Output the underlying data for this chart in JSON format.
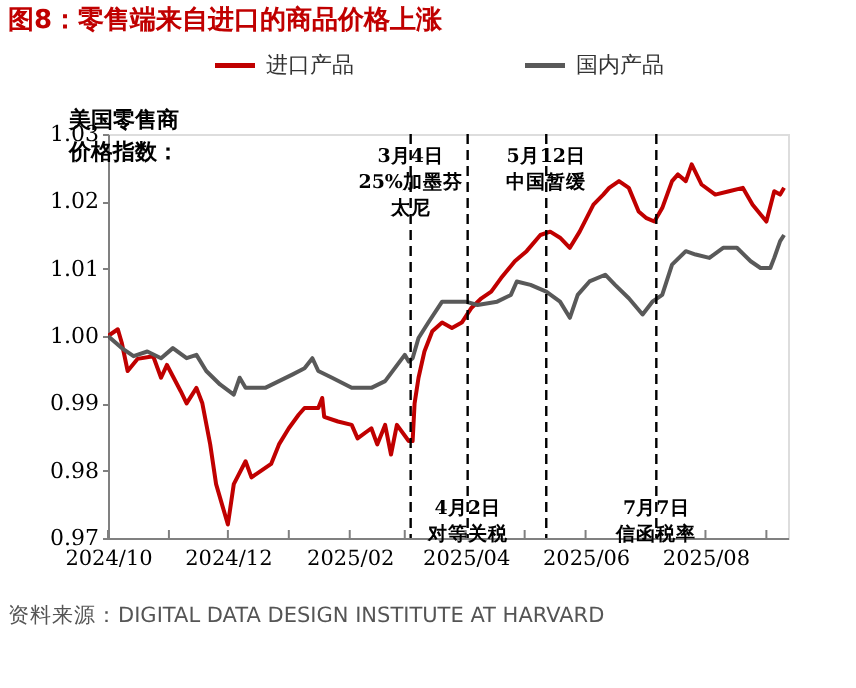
{
  "chart_data": {
    "type": "line",
    "title": "图8：零售端来自进口的商品价格上涨",
    "ylabel": "美国零售商价格指数：",
    "legend": "top",
    "grid": false,
    "marker": "none",
    "line_style": "solid",
    "xlim": [
      "2024-10-01",
      "2025-09-12"
    ],
    "ylim": [
      0.97,
      1.03
    ],
    "xticks": [
      {
        "value": "2024-10-01",
        "label": "2024/10"
      },
      {
        "value": "2024-11-01",
        "label": null
      },
      {
        "value": "2024-12-01",
        "label": "2024/12"
      },
      {
        "value": "2025-01-01",
        "label": null
      },
      {
        "value": "2025-02-01",
        "label": "2025/02"
      },
      {
        "value": "2025-03-01",
        "label": null
      },
      {
        "value": "2025-04-01",
        "label": "2025/04"
      },
      {
        "value": "2025-05-01",
        "label": null
      },
      {
        "value": "2025-06-01",
        "label": "2025/06"
      },
      {
        "value": "2025-07-01",
        "label": null
      },
      {
        "value": "2025-08-01",
        "label": "2025/08"
      },
      {
        "value": "2025-09-01",
        "label": null
      }
    ],
    "yticks": [
      0.97,
      0.98,
      0.99,
      {
        "value": 1.0,
        "label": "1.00"
      },
      1.01,
      1.02,
      1.03
    ],
    "series": [
      {
        "name": "进口产品",
        "color": "#c00000",
        "x": [
          "2024-10-01",
          "2024-10-06",
          "2024-10-08",
          "2024-10-11",
          "2024-10-16",
          "2024-10-24",
          "2024-10-28",
          "2024-10-31",
          "2024-11-07",
          "2024-11-10",
          "2024-11-15",
          "2024-11-18",
          "2024-11-22",
          "2024-11-25",
          "2024-11-28",
          "2024-12-01",
          "2024-12-04",
          "2024-12-10",
          "2024-12-13",
          "2024-12-18",
          "2024-12-23",
          "2024-12-27",
          "2025-01-01",
          "2025-01-06",
          "2025-01-09",
          "2025-01-16",
          "2025-01-18",
          "2025-01-19",
          "2025-01-26",
          "2025-02-02",
          "2025-02-05",
          "2025-02-12",
          "2025-02-15",
          "2025-02-19",
          "2025-02-22",
          "2025-02-25",
          "2025-03-03",
          "2025-03-05",
          "2025-03-06",
          "2025-03-08",
          "2025-03-11",
          "2025-03-15",
          "2025-03-20",
          "2025-03-25",
          "2025-03-30",
          "2025-04-04",
          "2025-04-09",
          "2025-04-14",
          "2025-04-19",
          "2025-04-26",
          "2025-05-02",
          "2025-05-09",
          "2025-05-14",
          "2025-05-19",
          "2025-05-24",
          "2025-05-29",
          "2025-06-05",
          "2025-06-10",
          "2025-06-13",
          "2025-06-18",
          "2025-06-23",
          "2025-06-28",
          "2025-07-02",
          "2025-07-06",
          "2025-07-10",
          "2025-07-15",
          "2025-07-18",
          "2025-07-22",
          "2025-07-25",
          "2025-07-30",
          "2025-08-06",
          "2025-08-13",
          "2025-08-20",
          "2025-08-25",
          "2025-09-01",
          "2025-09-05",
          "2025-09-08",
          "2025-09-10"
        ],
        "values": [
          1.0,
          1.001,
          0.999,
          0.9948,
          0.9966,
          0.997,
          0.9938,
          0.9957,
          0.9918,
          0.99,
          0.9923,
          0.99,
          0.9839,
          0.978,
          0.975,
          0.972,
          0.978,
          0.9814,
          0.979,
          0.98,
          0.981,
          0.9839,
          0.9863,
          0.9883,
          0.9893,
          0.9893,
          0.9908,
          0.988,
          0.9873,
          0.9868,
          0.9848,
          0.9863,
          0.9839,
          0.9868,
          0.9824,
          0.9868,
          0.9844,
          0.9844,
          0.99,
          0.9938,
          0.9977,
          1.0007,
          1.002,
          1.0012,
          1.002,
          1.0042,
          1.0056,
          1.0066,
          1.0086,
          1.0111,
          1.0126,
          1.015,
          1.0155,
          1.0146,
          1.0131,
          1.0155,
          1.0195,
          1.021,
          1.022,
          1.023,
          1.022,
          1.0185,
          1.0175,
          1.017,
          1.019,
          1.023,
          1.024,
          1.023,
          1.0255,
          1.0225,
          1.021,
          1.0215,
          1.022,
          1.0195,
          1.017,
          1.0215,
          1.021,
          1.022
        ]
      },
      {
        "name": "国内产品",
        "color": "#595959",
        "x": [
          "2024-10-01",
          "2024-10-08",
          "2024-10-14",
          "2024-10-21",
          "2024-10-28",
          "2024-11-03",
          "2024-11-10",
          "2024-11-15",
          "2024-11-20",
          "2024-11-27",
          "2024-12-04",
          "2024-12-07",
          "2024-12-10",
          "2024-12-20",
          "2024-12-27",
          "2025-01-03",
          "2025-01-09",
          "2025-01-13",
          "2025-01-16",
          "2025-01-23",
          "2025-02-02",
          "2025-02-12",
          "2025-02-19",
          "2025-03-01",
          "2025-03-03",
          "2025-03-05",
          "2025-03-08",
          "2025-03-13",
          "2025-03-20",
          "2025-04-01",
          "2025-04-07",
          "2025-04-17",
          "2025-04-24",
          "2025-04-27",
          "2025-05-04",
          "2025-05-12",
          "2025-05-19",
          "2025-05-24",
          "2025-05-28",
          "2025-06-03",
          "2025-06-11",
          "2025-06-16",
          "2025-06-23",
          "2025-06-30",
          "2025-07-05",
          "2025-07-10",
          "2025-07-15",
          "2025-07-22",
          "2025-07-27",
          "2025-08-03",
          "2025-08-10",
          "2025-08-17",
          "2025-08-24",
          "2025-08-29",
          "2025-09-03",
          "2025-09-05",
          "2025-09-08",
          "2025-09-10"
        ],
        "values": [
          1.0,
          0.9982,
          0.997,
          0.9977,
          0.9967,
          0.9982,
          0.9967,
          0.9972,
          0.9948,
          0.9928,
          0.9913,
          0.9938,
          0.9923,
          0.9923,
          0.9933,
          0.9943,
          0.9952,
          0.9967,
          0.9948,
          0.9938,
          0.9923,
          0.9923,
          0.9933,
          0.9972,
          0.9962,
          0.9967,
          0.9997,
          1.002,
          1.0051,
          1.0051,
          1.0046,
          1.0051,
          1.0061,
          1.0081,
          1.0076,
          1.0066,
          1.0051,
          1.0027,
          1.0061,
          1.0081,
          1.0091,
          1.0076,
          1.0056,
          1.0032,
          1.0051,
          1.0061,
          1.0106,
          1.0126,
          1.0121,
          1.0116,
          1.0131,
          1.0131,
          1.0111,
          1.0101,
          1.0101,
          1.0116,
          1.0141,
          1.015
        ]
      }
    ],
    "ref_lines": [
      {
        "axis": "x",
        "value": "2025-03-04",
        "label": "3月4日25%加墨芬太尼",
        "color": "#000000",
        "line_style": "dashed"
      },
      {
        "axis": "x",
        "value": "2025-04-02",
        "label": "4月2日对等关税",
        "color": "#000000",
        "line_style": "dashed"
      },
      {
        "axis": "x",
        "value": "2025-05-12",
        "label": "5月12日中国暂缓",
        "color": "#000000",
        "line_style": "dashed"
      },
      {
        "axis": "x",
        "value": "2025-07-07",
        "label": "7月7日信函税率",
        "color": "#000000",
        "line_style": "dashed"
      }
    ],
    "annotations": [
      "资料来源：DIGITAL DATA DESIGN INSTITUTE AT HARVARD"
    ]
  }
}
